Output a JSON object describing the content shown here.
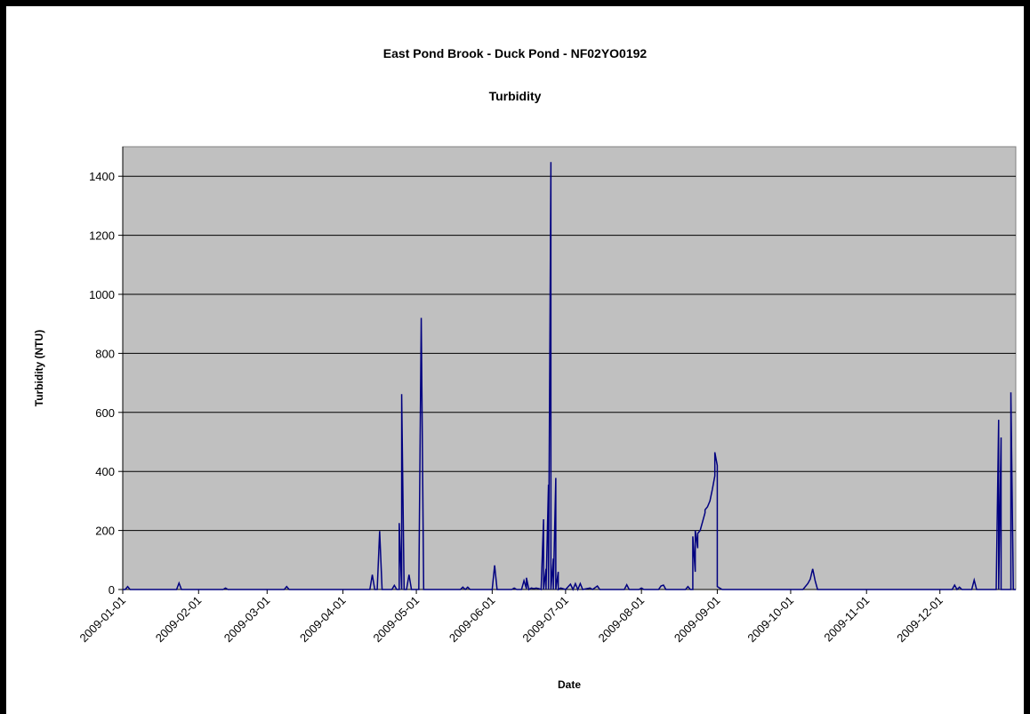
{
  "chart_data": {
    "type": "line",
    "title": "East Pond Brook - Duck Pond - NF02YO0192",
    "subtitle": "Turbidity",
    "xlabel": "Date",
    "ylabel": "Turbidity (NTU)",
    "ylim": [
      0,
      1500
    ],
    "yticks": [
      0,
      200,
      400,
      600,
      800,
      1000,
      1200,
      1400
    ],
    "xlim": [
      "2009-01-01",
      "2010-01-01"
    ],
    "xticks": [
      "2009-01-01",
      "2009-02-01",
      "2009-03-01",
      "2009-04-01",
      "2009-05-01",
      "2009-06-01",
      "2009-07-01",
      "2009-08-01",
      "2009-09-01",
      "2009-10-01",
      "2009-11-01",
      "2009-12-01"
    ],
    "grid": true,
    "legend": "none",
    "colors": {
      "series": "#000080",
      "plot_bg": "#c0c0c0",
      "grid": "#000000"
    },
    "series": [
      {
        "values": [
          [
            "2009-01-02",
            0
          ],
          [
            "2009-01-03",
            10
          ],
          [
            "2009-01-04",
            0
          ],
          [
            "2009-01-23",
            0
          ],
          [
            "2009-01-24",
            22
          ],
          [
            "2009-01-25",
            0
          ],
          [
            "2009-02-11",
            0
          ],
          [
            "2009-02-12",
            5
          ],
          [
            "2009-02-13",
            0
          ],
          [
            "2009-03-08",
            0
          ],
          [
            "2009-03-09",
            10
          ],
          [
            "2009-03-10",
            0
          ],
          [
            "2009-04-12",
            0
          ],
          [
            "2009-04-13",
            50
          ],
          [
            "2009-04-14",
            0
          ],
          [
            "2009-04-15",
            0
          ],
          [
            "2009-04-16",
            198
          ],
          [
            "2009-04-17",
            0
          ],
          [
            "2009-04-21",
            0
          ],
          [
            "2009-04-22",
            14
          ],
          [
            "2009-04-23",
            0
          ],
          [
            "2009-04-24",
            0
          ],
          [
            "2009-04-24",
            225
          ],
          [
            "2009-04-25",
            0
          ],
          [
            "2009-04-25",
            662
          ],
          [
            "2009-04-26",
            0
          ],
          [
            "2009-04-27",
            0
          ],
          [
            "2009-04-28",
            50
          ],
          [
            "2009-04-29",
            0
          ],
          [
            "2009-05-02",
            0
          ],
          [
            "2009-05-03",
            920
          ],
          [
            "2009-05-04",
            0
          ],
          [
            "2009-05-19",
            0
          ],
          [
            "2009-05-20",
            8
          ],
          [
            "2009-05-21",
            0
          ],
          [
            "2009-05-22",
            8
          ],
          [
            "2009-05-23",
            0
          ],
          [
            "2009-06-01",
            0
          ],
          [
            "2009-06-02",
            82
          ],
          [
            "2009-06-03",
            0
          ],
          [
            "2009-06-09",
            0
          ],
          [
            "2009-06-10",
            5
          ],
          [
            "2009-06-11",
            0
          ],
          [
            "2009-06-13",
            0
          ],
          [
            "2009-06-14",
            30
          ],
          [
            "2009-06-15",
            3
          ],
          [
            "2009-06-15",
            40
          ],
          [
            "2009-06-16",
            0
          ],
          [
            "2009-06-17",
            5
          ],
          [
            "2009-06-18",
            3
          ],
          [
            "2009-06-19",
            5
          ],
          [
            "2009-06-20",
            3
          ],
          [
            "2009-06-21",
            0
          ],
          [
            "2009-06-22",
            238
          ],
          [
            "2009-06-22",
            0
          ],
          [
            "2009-06-23",
            70
          ],
          [
            "2009-06-23",
            0
          ],
          [
            "2009-06-24",
            355
          ],
          [
            "2009-06-24",
            0
          ],
          [
            "2009-06-25",
            1448
          ],
          [
            "2009-06-25",
            0
          ],
          [
            "2009-06-26",
            105
          ],
          [
            "2009-06-26",
            0
          ],
          [
            "2009-06-27",
            378
          ],
          [
            "2009-06-27",
            0
          ],
          [
            "2009-06-28",
            60
          ],
          [
            "2009-06-28",
            0
          ],
          [
            "2009-06-29",
            5
          ],
          [
            "2009-07-01",
            0
          ],
          [
            "2009-07-03",
            18
          ],
          [
            "2009-07-04",
            0
          ],
          [
            "2009-07-05",
            20
          ],
          [
            "2009-07-06",
            0
          ],
          [
            "2009-07-07",
            20
          ],
          [
            "2009-07-08",
            0
          ],
          [
            "2009-07-11",
            5
          ],
          [
            "2009-07-12",
            0
          ],
          [
            "2009-07-14",
            12
          ],
          [
            "2009-07-15",
            0
          ],
          [
            "2009-07-25",
            0
          ],
          [
            "2009-07-26",
            16
          ],
          [
            "2009-07-27",
            0
          ],
          [
            "2009-07-31",
            0
          ],
          [
            "2009-08-01",
            5
          ],
          [
            "2009-08-02",
            0
          ],
          [
            "2009-08-08",
            0
          ],
          [
            "2009-08-09",
            12
          ],
          [
            "2009-08-10",
            15
          ],
          [
            "2009-08-11",
            0
          ],
          [
            "2009-08-19",
            0
          ],
          [
            "2009-08-20",
            10
          ],
          [
            "2009-08-21",
            0
          ],
          [
            "2009-08-22",
            0
          ],
          [
            "2009-08-22",
            180
          ],
          [
            "2009-08-23",
            60
          ],
          [
            "2009-08-23",
            200
          ],
          [
            "2009-08-24",
            140
          ],
          [
            "2009-08-24",
            190
          ],
          [
            "2009-08-25",
            200
          ],
          [
            "2009-08-26",
            230
          ],
          [
            "2009-08-27",
            260
          ],
          [
            "2009-08-27",
            270
          ],
          [
            "2009-08-28",
            280
          ],
          [
            "2009-08-29",
            300
          ],
          [
            "2009-08-30",
            340
          ],
          [
            "2009-08-31",
            385
          ],
          [
            "2009-08-31",
            465
          ],
          [
            "2009-09-01",
            420
          ],
          [
            "2009-09-01",
            10
          ],
          [
            "2009-09-02",
            5
          ],
          [
            "2009-09-03",
            0
          ],
          [
            "2009-10-06",
            0
          ],
          [
            "2009-10-08",
            20
          ],
          [
            "2009-10-09",
            35
          ],
          [
            "2009-10-10",
            70
          ],
          [
            "2009-10-11",
            30
          ],
          [
            "2009-10-12",
            0
          ],
          [
            "2009-12-06",
            0
          ],
          [
            "2009-12-07",
            15
          ],
          [
            "2009-12-08",
            0
          ],
          [
            "2009-12-09",
            8
          ],
          [
            "2009-12-10",
            0
          ],
          [
            "2009-12-14",
            0
          ],
          [
            "2009-12-15",
            32
          ],
          [
            "2009-12-16",
            0
          ],
          [
            "2009-12-24",
            0
          ],
          [
            "2009-12-25",
            575
          ],
          [
            "2009-12-25",
            0
          ],
          [
            "2009-12-26",
            515
          ],
          [
            "2009-12-26",
            0
          ],
          [
            "2009-12-30",
            0
          ],
          [
            "2009-12-30",
            668
          ],
          [
            "2009-12-31",
            0
          ]
        ]
      }
    ]
  }
}
